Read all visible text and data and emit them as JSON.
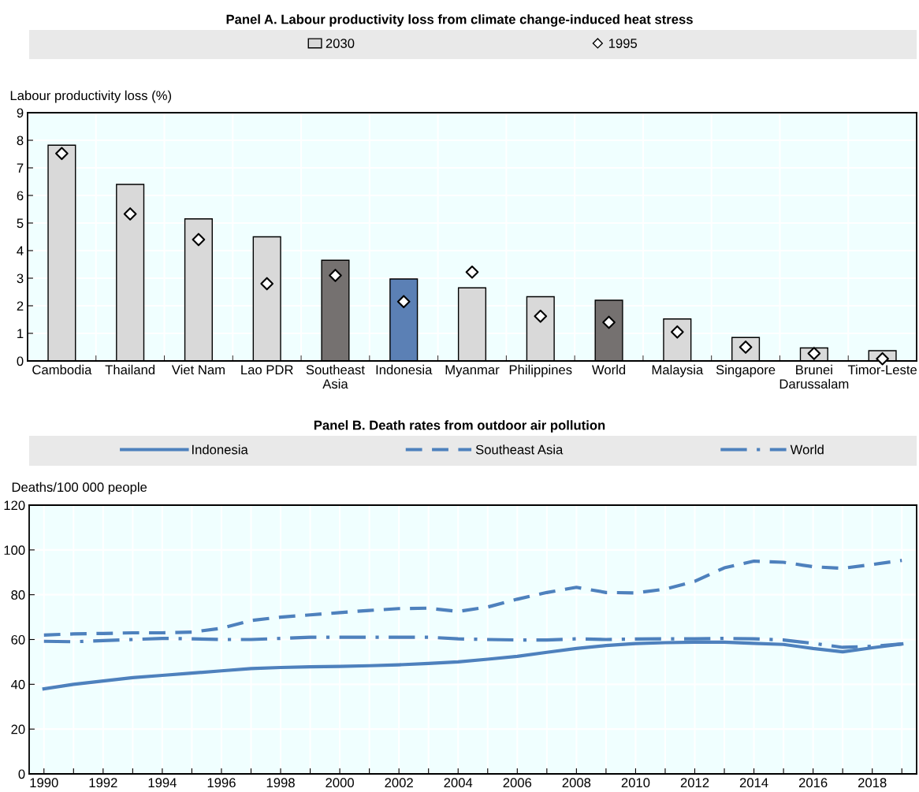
{
  "chart_data": [
    {
      "type": "bar",
      "title": "Panel A. Labour productivity loss from climate change-induced heat stress",
      "ylabel": "Labour productivity loss (%)",
      "categories": [
        "Cambodia",
        "Thailand",
        "Viet Nam",
        "Lao PDR",
        "Southeast\nAsia",
        "Indonesia",
        "Myanmar",
        "Philippines",
        "World",
        "Malaysia",
        "Singapore",
        "Brunei\nDarussalam",
        "Timor-Leste"
      ],
      "series": [
        {
          "name": "2030",
          "type": "bar",
          "color": "#d9d9d9",
          "colors": [
            "#d9d9d9",
            "#d9d9d9",
            "#d9d9d9",
            "#d9d9d9",
            "#757170",
            "#5b80b5",
            "#d9d9d9",
            "#d9d9d9",
            "#757170",
            "#d9d9d9",
            "#d9d9d9",
            "#d9d9d9",
            "#d9d9d9"
          ],
          "values": [
            7.82,
            6.4,
            5.15,
            4.5,
            3.65,
            2.97,
            2.65,
            2.33,
            2.2,
            1.52,
            0.85,
            0.47,
            0.37
          ]
        },
        {
          "name": "1995",
          "type": "scatter",
          "color": "#ffffff",
          "marker": "diamond",
          "values": [
            7.52,
            5.33,
            4.4,
            2.8,
            3.1,
            2.15,
            3.22,
            1.62,
            1.4,
            1.05,
            0.5,
            0.27,
            0.08
          ]
        }
      ],
      "ylim": [
        0,
        9
      ],
      "yticks": [
        0,
        1,
        2,
        3,
        4,
        5,
        6,
        7,
        8,
        9
      ],
      "grid": true,
      "legend": "top"
    },
    {
      "type": "line",
      "title": "Panel B. Death rates from outdoor air pollution",
      "ylabel": "Deaths/100 000 people",
      "x": [
        1990,
        1991,
        1992,
        1993,
        1994,
        1995,
        1996,
        1997,
        1998,
        1999,
        2000,
        2001,
        2002,
        2003,
        2004,
        2005,
        2006,
        2007,
        2008,
        2009,
        2010,
        2011,
        2012,
        2013,
        2014,
        2015,
        2016,
        2017,
        2018,
        2019
      ],
      "series": [
        {
          "name": "Indonesia",
          "color": "#4e81bd",
          "line_style": "solid",
          "values": [
            38,
            40,
            41.5,
            43,
            44,
            45,
            46,
            47,
            47.5,
            47.8,
            48,
            48.3,
            48.7,
            49.3,
            50,
            51.2,
            52.5,
            54.3,
            56,
            57.3,
            58.2,
            58.6,
            58.8,
            58.8,
            58.3,
            57.8,
            56,
            54.5,
            56.3,
            58
          ]
        },
        {
          "name": "Southeast Asia",
          "color": "#4e81bd",
          "line_style": "dashed",
          "values": [
            62,
            62.5,
            62.7,
            63,
            63,
            63.3,
            65,
            68.5,
            70,
            71,
            72,
            73,
            73.8,
            74,
            72.5,
            74.5,
            78,
            81,
            83.3,
            81,
            80.8,
            82.5,
            86,
            92,
            95,
            94.5,
            92.5,
            91.8,
            93.5,
            95.3
          ]
        },
        {
          "name": "World",
          "color": "#4e81bd",
          "line_style": "dashdot",
          "values": [
            59.2,
            59,
            59.5,
            60,
            60.5,
            60.3,
            60,
            60,
            60.5,
            61,
            61,
            61,
            61,
            61,
            60.3,
            60,
            59.8,
            59.8,
            60.3,
            60,
            60.2,
            60.3,
            60.3,
            60.5,
            60.3,
            59.8,
            58.3,
            56.5,
            57,
            58
          ]
        }
      ],
      "xlim": [
        1989.5,
        2019.5
      ],
      "xticks": [
        1990,
        {
          "value": 1991,
          "label": null
        },
        1992,
        {
          "value": 1993,
          "label": null
        },
        1994,
        {
          "value": 1995,
          "label": null
        },
        1996,
        {
          "value": 1997,
          "label": null
        },
        1998,
        {
          "value": 1999,
          "label": null
        },
        2000,
        {
          "value": 2001,
          "label": null
        },
        2002,
        {
          "value": 2003,
          "label": null
        },
        2004,
        {
          "value": 2005,
          "label": null
        },
        2006,
        {
          "value": 2007,
          "label": null
        },
        2008,
        {
          "value": 2009,
          "label": null
        },
        2010,
        {
          "value": 2011,
          "label": null
        },
        2012,
        {
          "value": 2013,
          "label": null
        },
        2014,
        {
          "value": 2015,
          "label": null
        },
        2016,
        {
          "value": 2017,
          "label": null
        },
        2018,
        {
          "value": 2019,
          "label": null
        }
      ],
      "ylim": [
        0,
        120
      ],
      "yticks": [
        0,
        20,
        40,
        60,
        80,
        100,
        120
      ],
      "grid": true,
      "legend": "top",
      "marker": "none"
    }
  ]
}
